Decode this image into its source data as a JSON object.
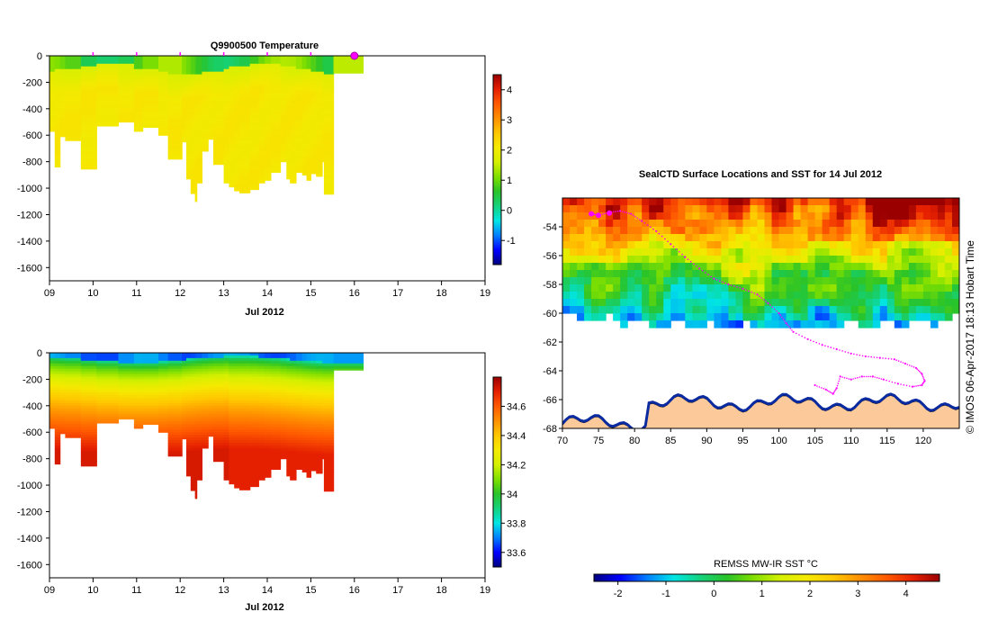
{
  "colors": {
    "jet": [
      "#00007f",
      "#0000ff",
      "#007fff",
      "#00e5e5",
      "#14d27d",
      "#29c329",
      "#7fdf00",
      "#d4f000",
      "#f5e900",
      "#ffc800",
      "#ff9000",
      "#ff5a00",
      "#e52000",
      "#9a0000"
    ],
    "land": "#fbc99a",
    "track": "#ff00ff"
  },
  "chart_data": [
    {
      "type": "heatmap",
      "title": "Q9900500  Temperature",
      "xlabel": "Jul 2012",
      "ylabel": "",
      "xlim": [
        9,
        19
      ],
      "ylim": [
        -1700,
        0
      ],
      "x_ticks": [
        "09",
        "10",
        "11",
        "12",
        "13",
        "14",
        "15",
        "16",
        "17",
        "18",
        "19"
      ],
      "y_ticks": [
        "0",
        "-200",
        "-400",
        "-600",
        "-800",
        "-1000",
        "-1200",
        "-1400",
        "-1600"
      ],
      "colorbar": {
        "min": -1.8,
        "max": 4.5,
        "ticks": [
          "-1",
          "0",
          "1",
          "2",
          "3",
          "4"
        ]
      },
      "profiles_x": [
        10,
        11,
        12,
        13,
        14,
        15,
        16
      ],
      "last_profile_x": 16,
      "surface_value": 0.8,
      "deep_value": 2.1,
      "casts": [
        {
          "x": 9.0,
          "w": 0.12,
          "depth": 570
        },
        {
          "x": 9.12,
          "w": 0.12,
          "depth": 840
        },
        {
          "x": 9.24,
          "w": 0.12,
          "depth": 610
        },
        {
          "x": 9.36,
          "w": 0.36,
          "depth": 640
        },
        {
          "x": 9.72,
          "w": 0.36,
          "depth": 855
        },
        {
          "x": 10.08,
          "w": 0.5,
          "depth": 530
        },
        {
          "x": 10.58,
          "w": 0.36,
          "depth": 500
        },
        {
          "x": 10.94,
          "w": 0.2,
          "depth": 570
        },
        {
          "x": 11.14,
          "w": 0.36,
          "depth": 540
        },
        {
          "x": 11.5,
          "w": 0.22,
          "depth": 600
        },
        {
          "x": 11.72,
          "w": 0.32,
          "depth": 780
        },
        {
          "x": 12.04,
          "w": 0.1,
          "depth": 650
        },
        {
          "x": 12.14,
          "w": 0.1,
          "depth": 930
        },
        {
          "x": 12.24,
          "w": 0.1,
          "depth": 1040
        },
        {
          "x": 12.34,
          "w": 0.04,
          "depth": 1100
        },
        {
          "x": 12.38,
          "w": 0.12,
          "depth": 960
        },
        {
          "x": 12.5,
          "w": 0.14,
          "depth": 720
        },
        {
          "x": 12.64,
          "w": 0.12,
          "depth": 630
        },
        {
          "x": 12.76,
          "w": 0.24,
          "depth": 820
        },
        {
          "x": 13.0,
          "w": 0.12,
          "depth": 960
        },
        {
          "x": 13.12,
          "w": 0.12,
          "depth": 990
        },
        {
          "x": 13.24,
          "w": 0.12,
          "depth": 1020
        },
        {
          "x": 13.36,
          "w": 0.24,
          "depth": 1035
        },
        {
          "x": 13.6,
          "w": 0.2,
          "depth": 1010
        },
        {
          "x": 13.8,
          "w": 0.14,
          "depth": 960
        },
        {
          "x": 13.94,
          "w": 0.14,
          "depth": 940
        },
        {
          "x": 14.08,
          "w": 0.22,
          "depth": 880
        },
        {
          "x": 14.3,
          "w": 0.14,
          "depth": 800
        },
        {
          "x": 14.44,
          "w": 0.08,
          "depth": 930
        },
        {
          "x": 14.52,
          "w": 0.14,
          "depth": 960
        },
        {
          "x": 14.66,
          "w": 0.14,
          "depth": 880
        },
        {
          "x": 14.8,
          "w": 0.1,
          "depth": 900
        },
        {
          "x": 14.9,
          "w": 0.1,
          "depth": 940
        },
        {
          "x": 15.0,
          "w": 0.12,
          "depth": 890
        },
        {
          "x": 15.12,
          "w": 0.14,
          "depth": 910
        },
        {
          "x": 15.26,
          "w": 0.04,
          "depth": 800
        },
        {
          "x": 15.3,
          "w": 0.22,
          "depth": 1045
        },
        {
          "x": 15.52,
          "w": 0.68,
          "depth": 130
        }
      ]
    },
    {
      "type": "heatmap",
      "title": "",
      "xlabel": "Jul 2012",
      "ylabel": "",
      "xlim": [
        9,
        19
      ],
      "ylim": [
        -1700,
        0
      ],
      "x_ticks": [
        "09",
        "10",
        "11",
        "12",
        "13",
        "14",
        "15",
        "16",
        "17",
        "18",
        "19"
      ],
      "y_ticks": [
        "0",
        "-200",
        "-400",
        "-600",
        "-800",
        "-1000",
        "-1200",
        "-1400",
        "-1600"
      ],
      "colorbar": {
        "min": 33.5,
        "max": 34.8,
        "ticks": [
          "33.6",
          "33.8",
          "34",
          "34.2",
          "34.4",
          "34.6"
        ]
      },
      "surface_value": 33.75,
      "deep_value": 34.72
    },
    {
      "type": "heatmap",
      "title": "SealCTD Surface Locations and SST for 14 Jul 2012",
      "xlabel": "",
      "ylabel": "",
      "xlim": [
        70,
        125
      ],
      "ylim": [
        -68,
        -52
      ],
      "x_ticks": [
        "70",
        "75",
        "80",
        "85",
        "90",
        "95",
        "100",
        "105",
        "110",
        "115",
        "120"
      ],
      "y_ticks": [
        "-54",
        "-56",
        "-58",
        "-60",
        "-62",
        "-64",
        "-66",
        "-68"
      ],
      "colorbar": {
        "label": "REMSS MW-IR SST °C",
        "min": -2.5,
        "max": 4.7,
        "ticks": [
          "-2",
          "-1",
          "0",
          "1",
          "2",
          "3",
          "4"
        ]
      },
      "credit": "© IMOS 06-Apr-2017 18:13 Hobart Time",
      "track": [
        [
          74,
          -53.1
        ],
        [
          75,
          -53.2
        ],
        [
          76.5,
          -53.0
        ],
        [
          78,
          -52.9
        ],
        [
          79.5,
          -53.1
        ],
        [
          81,
          -53.6
        ],
        [
          83,
          -54.3
        ],
        [
          85,
          -55.2
        ],
        [
          87,
          -56.1
        ],
        [
          89,
          -56.9
        ],
        [
          91,
          -57.6
        ],
        [
          93,
          -58.0
        ],
        [
          95,
          -58.3
        ],
        [
          97,
          -58.7
        ],
        [
          98.5,
          -59.3
        ],
        [
          100,
          -60.0
        ],
        [
          101,
          -60.7
        ],
        [
          102,
          -61.3
        ],
        [
          104,
          -61.8
        ],
        [
          106,
          -62.2
        ],
        [
          108,
          -62.5
        ],
        [
          110,
          -62.8
        ],
        [
          112,
          -63.0
        ],
        [
          114,
          -63.1
        ],
        [
          116,
          -63.2
        ],
        [
          117.5,
          -63.5
        ],
        [
          119,
          -63.8
        ],
        [
          119.8,
          -64.2
        ],
        [
          120.2,
          -64.7
        ],
        [
          119.8,
          -65.0
        ],
        [
          118.5,
          -65.1
        ],
        [
          116.5,
          -64.9
        ],
        [
          114.5,
          -64.6
        ],
        [
          113,
          -64.4
        ],
        [
          111.5,
          -64.4
        ],
        [
          110,
          -64.6
        ],
        [
          108.5,
          -64.4
        ],
        [
          108,
          -65.2
        ],
        [
          107.5,
          -65.6
        ],
        [
          106.5,
          -65.3
        ],
        [
          105,
          -65.0
        ]
      ]
    }
  ]
}
